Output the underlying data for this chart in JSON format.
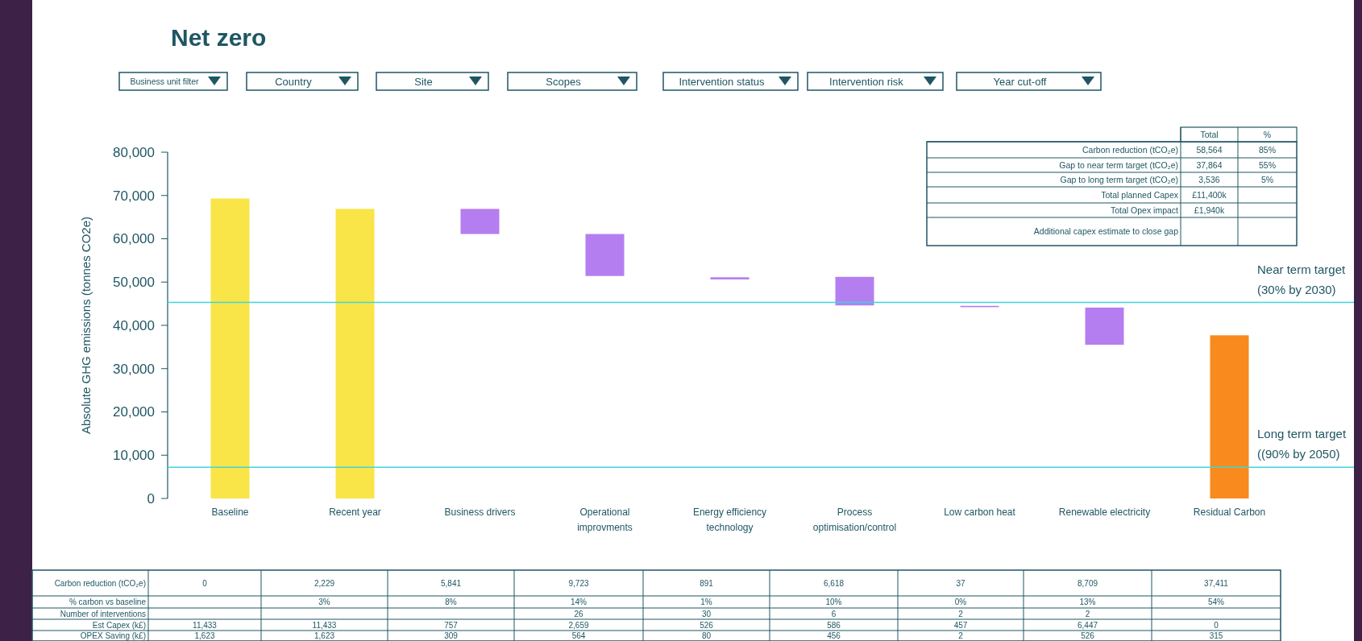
{
  "chart_data": [
    {
      "type": "bar",
      "title": "Net zero",
      "ylabel": "Absolute GHG emissions (tonnes CO2e)",
      "categories": [
        "Baseline",
        "Recent year",
        "Business drivers",
        "Operational improvments",
        "Energy efficiency technology",
        "Process optimisation/control",
        "Low carbon heat",
        "Renewable electricity",
        "Residual Carbon"
      ],
      "values": [
        69300,
        66900,
        5800,
        9700,
        500,
        6600,
        300,
        8600,
        37700
      ],
      "base": [
        0,
        0,
        61100,
        51400,
        50600,
        44600,
        44200,
        35500,
        0
      ],
      "colors": [
        "#f9e547",
        "#f9e547",
        "#b57ef0",
        "#b57ef0",
        "#b57ef0",
        "#b57ef0",
        "#b57ef0",
        "#b57ef0",
        "#f98a1e"
      ],
      "ylim": [
        0,
        80000
      ],
      "yticks": [
        0,
        {
          "value": 10000,
          "label": "10,000"
        },
        {
          "value": 20000,
          "label": "20,000"
        },
        {
          "value": 30000,
          "label": "30,000"
        },
        {
          "value": 40000,
          "label": "40,000"
        },
        {
          "value": 50000,
          "label": "50,000"
        },
        {
          "value": 60000,
          "label": "60,000"
        },
        {
          "value": 70000,
          "label": "70,000"
        },
        {
          "value": 80000,
          "label": "80,000"
        }
      ],
      "ref_lines": [
        {
          "axis": "y",
          "value": 45300,
          "label": "Near term target\n(30% by 2030)",
          "color": "#3fd6dc"
        },
        {
          "axis": "y",
          "value": 7200,
          "label": "Long term target\n((90% by 2050)",
          "color": "#3fd6dc"
        }
      ]
    },
    {
      "type": "other",
      "categories": [
        "Business unit filter",
        "Country",
        "Site",
        "Scopes",
        "Intervention status",
        "Intervention risk",
        "Year cut-off"
      ]
    },
    {
      "type": "other",
      "categories": [
        "Total",
        "%"
      ],
      "y_categories": [
        "Carbon reduction (tCO₂e)",
        "Gap to near term target (tCO₂e)",
        "Gap to long term target (tCO₂e)",
        "Total  planned Capex",
        "Total Opex impact",
        "Additional capex estimate to close gap"
      ],
      "cell_labels": [
        [
          "58,564",
          "85%"
        ],
        [
          "37,864",
          "55%"
        ],
        [
          "3,536",
          "5%"
        ],
        [
          "£11,400k",
          null
        ],
        [
          "£1,940k",
          null
        ],
        [
          null,
          null
        ]
      ]
    },
    {
      "type": "other",
      "categories": [
        null,
        null,
        null,
        null,
        null,
        null,
        null,
        null,
        null
      ],
      "y_categories": [
        "Carbon reduction (tCO₂e)",
        "% carbon vs baseline",
        "Number of interventions",
        "Est Capex  (k£)",
        "OPEX Saving (k£)"
      ],
      "cell_labels": [
        [
          "0",
          "2,229",
          "5,841",
          "9,723",
          "891",
          "6,618",
          "37",
          "8,709",
          "37,411"
        ],
        [
          null,
          "3%",
          "8%",
          "14%",
          "1%",
          "10%",
          "0%",
          "13%",
          "54%"
        ],
        [
          null,
          null,
          null,
          "26",
          "30",
          "6",
          "2",
          "2",
          null
        ],
        [
          "11,433",
          "11,433",
          "757",
          "2,659",
          "526",
          "586",
          "457",
          "6,447",
          "0"
        ],
        [
          "1,623",
          "1,623",
          "309",
          "564",
          "80",
          "456",
          "2",
          "526",
          "315"
        ]
      ]
    }
  ]
}
